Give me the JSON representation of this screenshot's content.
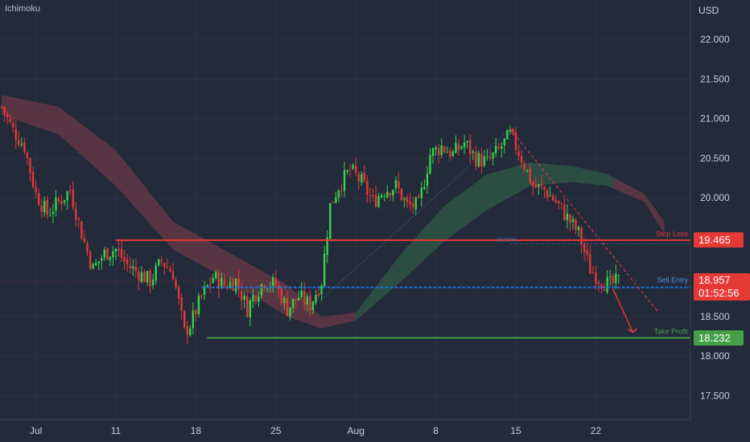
{
  "indicator": "Ichimoku",
  "currency": "USD",
  "colors": {
    "background": "#232a3a",
    "up": "#26a69a",
    "up_bright": "#37d34a",
    "down": "#e53935",
    "stop_loss": "#e53935",
    "entry": "#1e6fd9",
    "take_profit": "#43a047",
    "cloud_bear": "#6b3a45",
    "cloud_bull": "#2f5a45"
  },
  "chart_data": {
    "type": "candlestick",
    "ylim": [
      17.2,
      22.5
    ],
    "yticks": [
      "22.000",
      "21.500",
      "21.000",
      "20.500",
      "20.000",
      "18.500",
      "18.000",
      "17.500"
    ],
    "ytick_values": [
      22.0,
      21.5,
      21.0,
      20.5,
      20.0,
      18.5,
      18.0,
      17.5
    ],
    "xticks": [
      {
        "label": "Jul",
        "bar": 12
      },
      {
        "label": "11",
        "bar": 40
      },
      {
        "label": "18",
        "bar": 68
      },
      {
        "label": "25",
        "bar": 96
      },
      {
        "label": "Aug",
        "bar": 124
      },
      {
        "label": "8",
        "bar": 152
      },
      {
        "label": "15",
        "bar": 180
      },
      {
        "label": "22",
        "bar": 208
      }
    ],
    "levels": [
      {
        "name": "Stop Loss",
        "value": 19.465,
        "label": "19.465"
      },
      {
        "name": "Sell Entry",
        "value": 18.87,
        "label": ""
      },
      {
        "name": "Take Profit",
        "value": 18.232,
        "label": "18.232"
      }
    ],
    "last_price": {
      "value": 18.957,
      "label": "18.957",
      "countdown": "01:52:56"
    },
    "fib_label": "23.60%",
    "anchors": [
      [
        0,
        21.15
      ],
      [
        4,
        20.85
      ],
      [
        8,
        20.65
      ],
      [
        12,
        20.05
      ],
      [
        16,
        19.8
      ],
      [
        20,
        19.95
      ],
      [
        24,
        20.1
      ],
      [
        28,
        19.55
      ],
      [
        32,
        19.1
      ],
      [
        36,
        19.3
      ],
      [
        40,
        19.35
      ],
      [
        44,
        19.15
      ],
      [
        48,
        19.05
      ],
      [
        52,
        18.95
      ],
      [
        56,
        19.2
      ],
      [
        60,
        19.05
      ],
      [
        64,
        18.3
      ],
      [
        66,
        18.4
      ],
      [
        70,
        18.75
      ],
      [
        74,
        19.0
      ],
      [
        78,
        18.9
      ],
      [
        82,
        18.95
      ],
      [
        86,
        18.6
      ],
      [
        88,
        18.75
      ],
      [
        92,
        18.95
      ],
      [
        96,
        18.9
      ],
      [
        100,
        18.6
      ],
      [
        104,
        18.75
      ],
      [
        108,
        18.65
      ],
      [
        112,
        18.95
      ],
      [
        115,
        19.9
      ],
      [
        118,
        20.15
      ],
      [
        122,
        20.35
      ],
      [
        126,
        20.2
      ],
      [
        130,
        19.95
      ],
      [
        134,
        20.1
      ],
      [
        138,
        20.15
      ],
      [
        142,
        19.9
      ],
      [
        146,
        19.9
      ],
      [
        150,
        20.55
      ],
      [
        154,
        20.65
      ],
      [
        158,
        20.55
      ],
      [
        162,
        20.7
      ],
      [
        166,
        20.5
      ],
      [
        170,
        20.45
      ],
      [
        174,
        20.6
      ],
      [
        178,
        20.8
      ],
      [
        182,
        20.5
      ],
      [
        186,
        20.15
      ],
      [
        190,
        20.1
      ],
      [
        194,
        19.95
      ],
      [
        198,
        19.75
      ],
      [
        202,
        19.55
      ],
      [
        206,
        19.1
      ],
      [
        210,
        18.95
      ],
      [
        213,
        18.9
      ],
      [
        216,
        18.95
      ]
    ],
    "cloud": {
      "top": [
        [
          0,
          21.3
        ],
        [
          20,
          21.15
        ],
        [
          40,
          20.6
        ],
        [
          60,
          19.7
        ],
        [
          80,
          19.3
        ],
        [
          100,
          18.9
        ],
        [
          112,
          18.5
        ],
        [
          124,
          18.55
        ],
        [
          140,
          19.3
        ],
        [
          155,
          19.9
        ],
        [
          170,
          20.3
        ],
        [
          185,
          20.45
        ],
        [
          200,
          20.4
        ],
        [
          212,
          20.3
        ],
        [
          225,
          20.05
        ],
        [
          232,
          19.7
        ]
      ],
      "bottom": [
        [
          0,
          21.05
        ],
        [
          20,
          20.8
        ],
        [
          40,
          20.15
        ],
        [
          60,
          19.35
        ],
        [
          80,
          18.95
        ],
        [
          100,
          18.5
        ],
        [
          112,
          18.35
        ],
        [
          124,
          18.45
        ],
        [
          140,
          18.95
        ],
        [
          155,
          19.45
        ],
        [
          170,
          19.85
        ],
        [
          185,
          20.15
        ],
        [
          200,
          20.2
        ],
        [
          212,
          20.15
        ],
        [
          225,
          19.95
        ],
        [
          232,
          19.55
        ]
      ],
      "bullish_from": 124,
      "bearish_from": 214
    },
    "trend_line": [
      [
        178,
        20.87
      ],
      [
        230,
        18.55
      ]
    ],
    "arrow": [
      [
        214,
        18.85
      ],
      [
        221,
        18.3
      ]
    ]
  }
}
